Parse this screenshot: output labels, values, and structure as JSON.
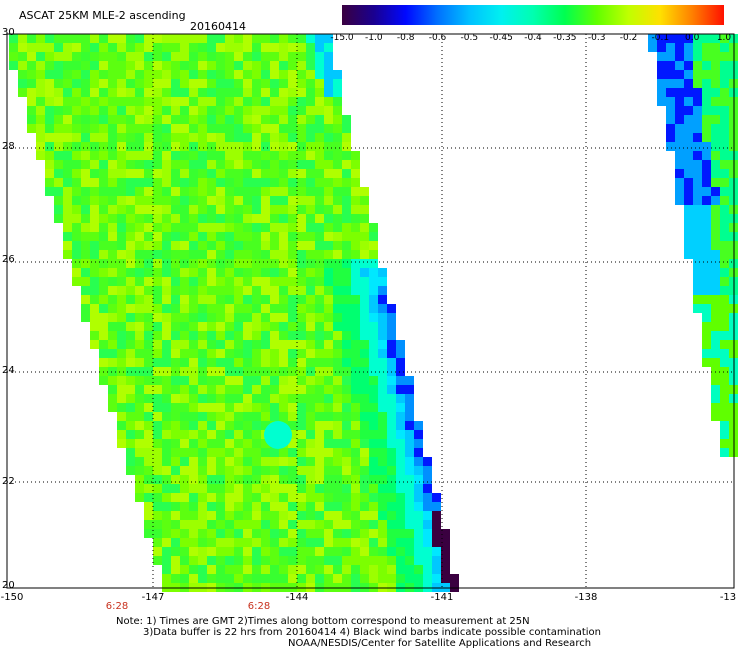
{
  "header": {
    "title": "ASCAT 25KM MLE-2 ascending",
    "date": "20160414"
  },
  "colorbar": {
    "labels": [
      "-15.0",
      "-1.0",
      "-0.8",
      "-0.6",
      "-0.5",
      "-0.45",
      "-0.4",
      "-0.35",
      "-0.3",
      "-0.2",
      "-0.1",
      "0.0",
      "1.0"
    ],
    "colors": [
      "#3a0040",
      "#1a0090",
      "#0008ff",
      "#0070ff",
      "#00c0ff",
      "#00f0f0",
      "#00ffb0",
      "#00ff50",
      "#60ff00",
      "#c0ff00",
      "#ffe000",
      "#ff8000",
      "#ff1000"
    ]
  },
  "axes": {
    "y_labels": [
      "30",
      "28",
      "26",
      "24",
      "22",
      "20"
    ],
    "x_labels": [
      "-150",
      "-147",
      "-144",
      "-141",
      "-138",
      "-13"
    ],
    "time_labels": [
      "6:28",
      "6:28"
    ]
  },
  "notes": {
    "line1": "Note: 1) Times are GMT 2)Times along bottom correspond to measurement at 25N",
    "line2": "3)Data buffer is 22 hrs from 20160414 4) Black wind barbs indicate possible contamination",
    "line3": "NOAA/NESDIS/Center for Satellite Applications and Research"
  }
}
